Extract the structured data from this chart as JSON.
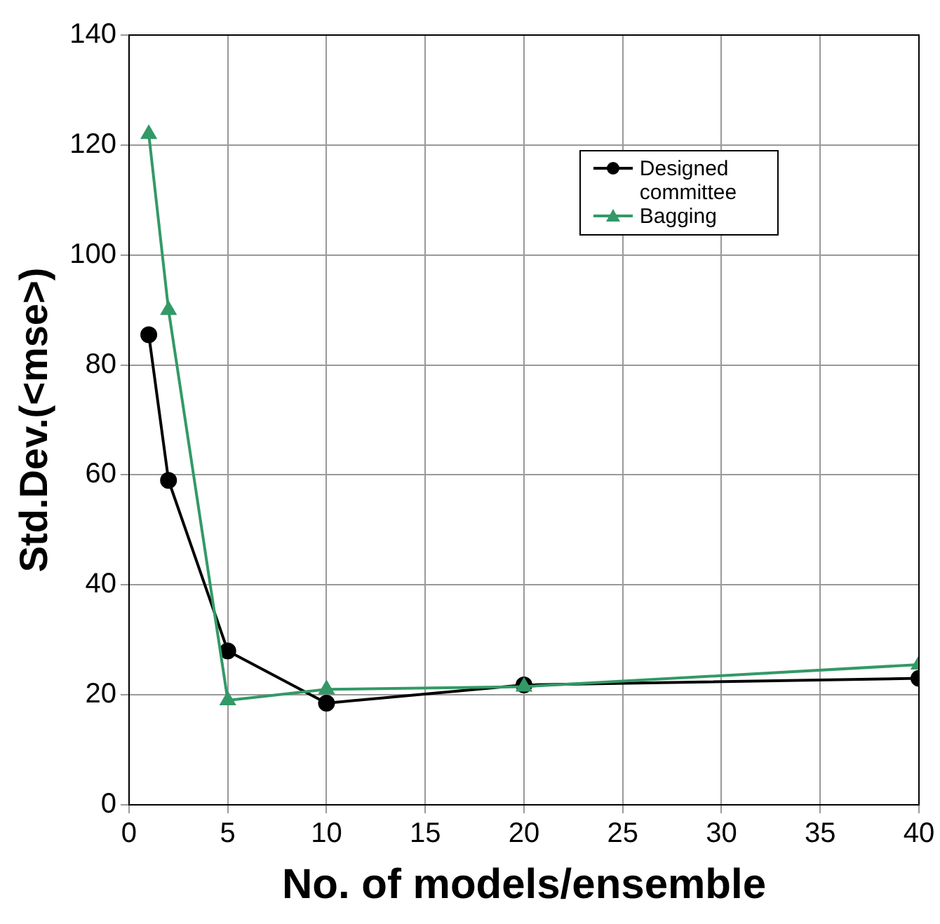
{
  "chart_data": {
    "type": "line",
    "xlabel": "No. of models/ensemble",
    "ylabel": "Std.Dev.(<mse>)",
    "xlim": [
      0,
      40
    ],
    "xticks": [
      0,
      5,
      10,
      15,
      20,
      25,
      30,
      35,
      40
    ],
    "ylim": [
      0,
      140
    ],
    "yticks": [
      0,
      20,
      40,
      60,
      80,
      100,
      120,
      140
    ],
    "x": [
      1,
      2,
      5,
      10,
      20,
      40
    ],
    "series": [
      {
        "name": "Designed committee",
        "color": "#000000",
        "marker": "circle",
        "values": [
          85.5,
          59,
          28,
          18.5,
          21.8,
          23
        ]
      },
      {
        "name": "Bagging",
        "color": "#339966",
        "marker": "triangle",
        "values": [
          122,
          90,
          19,
          21,
          21.5,
          25.5
        ]
      }
    ],
    "grid": true,
    "legend": "top right"
  }
}
